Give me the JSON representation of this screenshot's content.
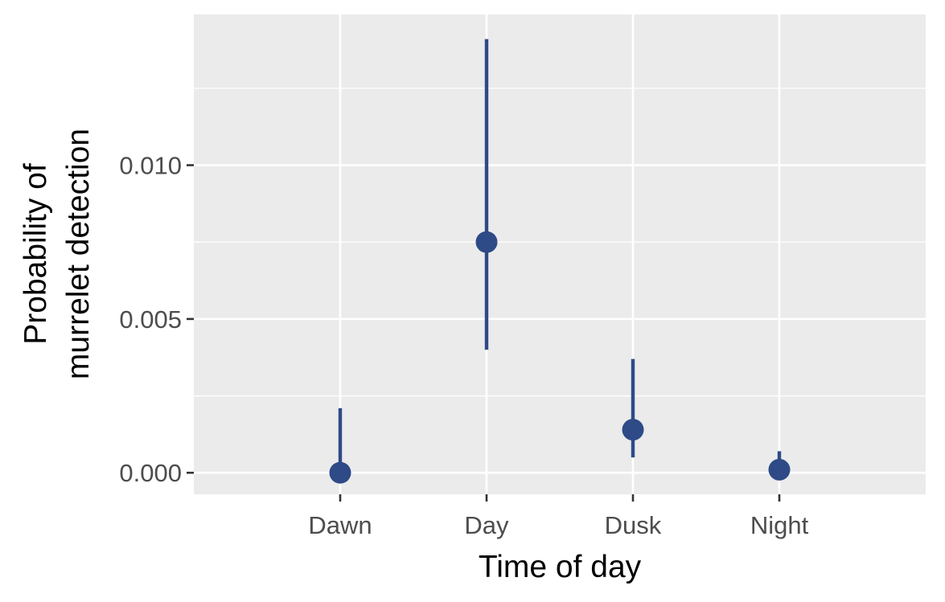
{
  "chart_data": {
    "type": "scatter",
    "title": "",
    "xlabel": "Time of day",
    "ylabel_lines": [
      "Probability of",
      "murrelet detection"
    ],
    "categories": [
      "Dawn",
      "Day",
      "Dusk",
      "Night"
    ],
    "series": [
      {
        "values": [
          0.0,
          0.0075,
          0.0014,
          0.0001
        ],
        "lower": [
          0.0,
          0.004,
          0.0005,
          0.0
        ],
        "upper": [
          0.0021,
          0.0141,
          0.0037,
          0.0007
        ]
      }
    ],
    "yticks": [
      0.0,
      0.005,
      0.01
    ],
    "ytick_labels": [
      "0.000",
      "0.005",
      "0.010"
    ],
    "ylim": [
      -0.0007,
      0.0149
    ],
    "grid": true,
    "legend": "none",
    "colors": {
      "point": "#2e4a87",
      "panel": "#ebebeb",
      "grid": "#ffffff",
      "tick": "#333333"
    }
  }
}
